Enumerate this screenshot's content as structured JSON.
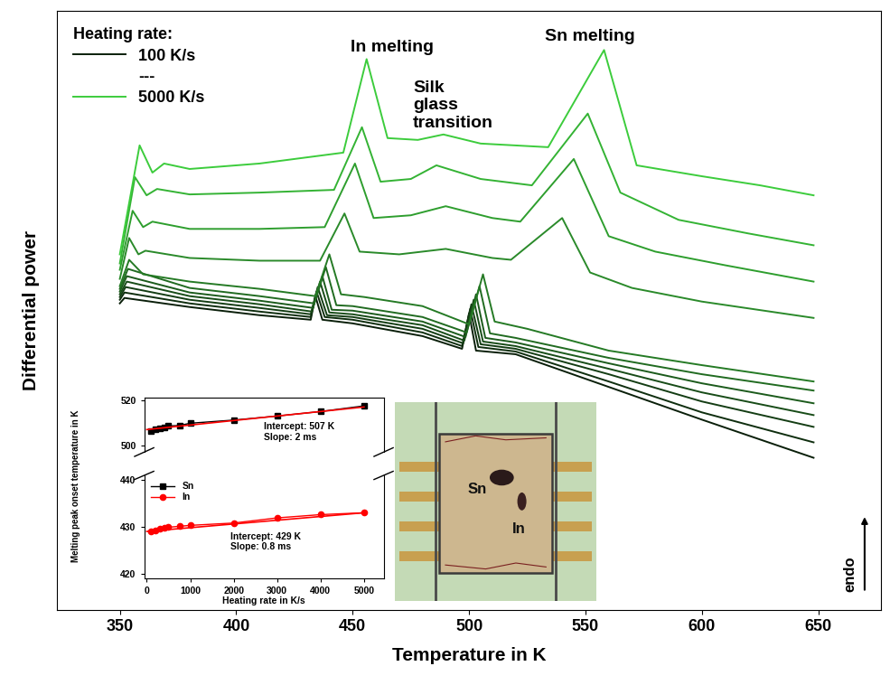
{
  "chart_data": [
    {
      "type": "line",
      "xlabel": "Temperature in K",
      "ylabel": "Differential power",
      "xlim": [
        323,
        677
      ],
      "ylim": [
        -20,
        640
      ],
      "xticks": [
        350,
        400,
        450,
        500,
        550,
        600,
        650
      ],
      "yticks": [],
      "tick_labels": "x",
      "legend": "upper left",
      "legend_title": "Heating rate:",
      "legend_entries": [
        "100 K/s",
        "---",
        "5000 K/s"
      ],
      "annotations": [
        "In melting",
        "Sn melting",
        "Silk\nglass\ntransition",
        "endo"
      ],
      "series": [
        {
          "name": "100 K/s",
          "color": "#0a1f0a",
          "x": [
            350,
            352,
            380,
            410,
            432,
            434,
            437,
            450,
            480,
            497,
            500,
            503,
            520,
            560,
            600,
            648
          ],
          "values": [
            318,
            324,
            314,
            305,
            300,
            326,
            300,
            296,
            282,
            268,
            307,
            266,
            262,
            226,
            190,
            148
          ]
        },
        {
          "color": "#0f2e0f",
          "x": [
            350,
            352,
            380,
            410,
            432,
            434.5,
            438,
            450,
            480,
            497,
            500.5,
            504,
            520,
            560,
            600,
            648
          ],
          "values": [
            322,
            330,
            318,
            309,
            303,
            331,
            303,
            300,
            286,
            271,
            312,
            270,
            265,
            232,
            198,
            165
          ]
        },
        {
          "color": "#143d14",
          "x": [
            350,
            352.5,
            380,
            410,
            432,
            435,
            439,
            450,
            480,
            497.5,
            501,
            505,
            520,
            560,
            600,
            648
          ],
          "values": [
            325,
            336,
            322,
            313,
            306,
            336,
            305,
            303,
            290,
            274,
            317,
            273,
            268,
            240,
            210,
            182
          ]
        },
        {
          "color": "#184c18",
          "x": [
            350,
            353,
            380,
            410,
            432.5,
            436,
            440,
            450,
            480,
            498,
            502,
            506,
            520,
            560,
            600,
            648
          ],
          "values": [
            328,
            342,
            326,
            317,
            309,
            342,
            308,
            306,
            294,
            277,
            322,
            276,
            271,
            246,
            220,
            195
          ]
        },
        {
          "color": "#1c5b1c",
          "x": [
            350,
            353,
            380,
            410,
            433,
            437,
            441,
            450,
            480,
            498.5,
            503,
            507,
            520,
            560,
            600,
            648
          ],
          "values": [
            331,
            348,
            330,
            321,
            313,
            348,
            311,
            310,
            298,
            281,
            328,
            280,
            275,
            252,
            230,
            208
          ]
        },
        {
          "color": "#216b21",
          "x": [
            350,
            353.5,
            380,
            410,
            433.5,
            438.5,
            443,
            450,
            480,
            499,
            504.5,
            509,
            520,
            560,
            600,
            648
          ],
          "values": [
            334,
            356,
            335,
            326,
            318,
            358,
            316,
            315,
            303,
            286,
            337,
            285,
            280,
            258,
            240,
            222
          ]
        },
        {
          "color": "#257a25",
          "x": [
            350,
            354,
            360,
            380,
            410,
            434,
            440,
            445,
            455,
            480,
            500,
            506,
            511,
            525,
            560,
            600,
            648
          ],
          "values": [
            337,
            366,
            350,
            342,
            334,
            326,
            372,
            328,
            325,
            315,
            295,
            350,
            298,
            290,
            266,
            250,
            232
          ]
        },
        {
          "color": "#2a8a2a",
          "x": [
            350,
            354,
            358,
            361,
            380,
            410,
            436,
            446.5,
            453,
            470,
            490,
            510,
            518,
            540,
            552,
            570,
            600,
            648
          ],
          "values": [
            345,
            390,
            372,
            376,
            368,
            365,
            365,
            417,
            375,
            372,
            378,
            368,
            366,
            412,
            352,
            335,
            320,
            302
          ]
        },
        {
          "color": "#2e9e2e",
          "x": [
            350,
            355.5,
            360,
            364,
            380,
            410,
            438,
            451,
            459,
            475,
            490,
            510,
            522,
            545,
            560,
            580,
            610,
            648
          ],
          "values": [
            355,
            420,
            402,
            408,
            400,
            400,
            402,
            472,
            412,
            415,
            425,
            412,
            408,
            477,
            392,
            375,
            360,
            342
          ]
        },
        {
          "color": "#34b334",
          "x": [
            350,
            356.5,
            361.5,
            366,
            380,
            410,
            442,
            454,
            462,
            475,
            486,
            505,
            527,
            551,
            565,
            590,
            620,
            648
          ],
          "values": [
            362,
            457,
            437,
            444,
            438,
            440,
            443,
            512,
            452,
            455,
            470,
            455,
            448,
            527,
            440,
            410,
            395,
            382
          ]
        },
        {
          "name": "5000 K/s",
          "color": "#3ccc3c",
          "x": [
            350,
            358.5,
            364,
            369,
            380,
            410,
            446,
            456,
            465,
            478,
            489,
            505,
            534,
            558,
            572,
            600,
            625,
            648
          ],
          "values": [
            372,
            492,
            462,
            472,
            466,
            472,
            484,
            587,
            500,
            498,
            504,
            494,
            490,
            597,
            470,
            458,
            448,
            437
          ]
        }
      ]
    },
    {
      "type": "line",
      "xlabel": "Heating rate in K/s",
      "ylabel": "Melting peak onset temperature in K",
      "xlim": [
        -60,
        5450
      ],
      "xticks": [
        0,
        1000,
        2000,
        3000,
        4000,
        5000
      ],
      "legend": "upper left",
      "segments": [
        {
          "ylim": [
            419,
            441
          ],
          "yticks": [
            420,
            430,
            440
          ],
          "annotation": "Intercept: 429 K\nSlope: 0.8 ms"
        },
        {
          "ylim": [
            497,
            521
          ],
          "yticks": [
            500,
            520
          ],
          "annotation": "Intercept: 507 K\nSlope: 2 ms"
        }
      ],
      "series": [
        {
          "name": "Sn",
          "color": "#000000",
          "marker": "square",
          "segment": 1,
          "x": [
            100,
            200,
            300,
            400,
            500,
            750,
            1000,
            2000,
            3000,
            4000,
            5000
          ],
          "values": [
            506.5,
            507.2,
            507.6,
            508.0,
            508.6,
            508.8,
            509.8,
            511.2,
            513.0,
            515.0,
            517.5
          ]
        },
        {
          "name": "In",
          "color": "#ff0000",
          "marker": "circle",
          "segment": 0,
          "x": [
            100,
            200,
            300,
            400,
            500,
            750,
            1000,
            2000,
            3000,
            4000,
            5000
          ],
          "values": [
            429.0,
            429.3,
            429.5,
            429.7,
            429.9,
            430.1,
            430.3,
            430.8,
            431.9,
            432.6,
            433.0
          ]
        },
        {
          "type": "line",
          "color": "#ff0000",
          "segment": 1,
          "x": [
            0,
            5000
          ],
          "values": [
            507,
            517
          ]
        },
        {
          "type": "line",
          "color": "#ff0000",
          "segment": 0,
          "x": [
            0,
            5000
          ],
          "values": [
            429,
            433
          ]
        }
      ]
    }
  ],
  "photo": {
    "labels": [
      "Sn",
      "In"
    ]
  }
}
